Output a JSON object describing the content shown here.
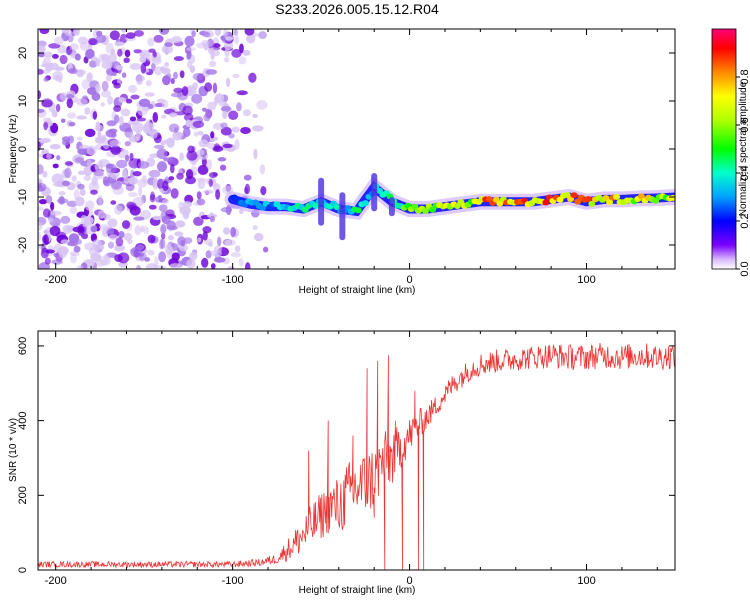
{
  "title": "S233.2026.005.15.12.R04",
  "colors": {
    "snr_line": "#ee3333",
    "scatter_dark": "#6a00d8",
    "scatter_mid": "#a070e8",
    "scatter_light": "#d8c4f4"
  },
  "colorbar": {
    "label": "Normalized spectral amplitude",
    "ticks": [
      "0.0",
      "0.2",
      "0.4",
      "0.6",
      "0.8"
    ],
    "tick_values": [
      0.0,
      0.2,
      0.4,
      0.6,
      0.8
    ],
    "range": [
      0,
      1
    ]
  },
  "chart_data": [
    {
      "type": "heatmap",
      "title": "S233.2026.005.15.12.R04",
      "xlabel": "Height of straight line (km)",
      "ylabel": "Frequency (Hz)",
      "xlim": [
        -210,
        150
      ],
      "ylim": [
        -25,
        25
      ],
      "xticks": [
        -200,
        -100,
        0,
        100
      ],
      "xtick_labels": [
        "-200",
        "-100",
        "0",
        "100"
      ],
      "yticks": [
        -20,
        -10,
        0,
        10,
        20
      ],
      "ytick_labels": [
        "-20",
        "-10",
        "0",
        "10",
        "20"
      ],
      "noise_region_x": [
        -210,
        -80
      ],
      "signal_trace": {
        "x": [
          -100,
          -90,
          -80,
          -70,
          -60,
          -50,
          -40,
          -30,
          -20,
          -10,
          0,
          10,
          20,
          30,
          40,
          50,
          60,
          70,
          80,
          90,
          100,
          110,
          120,
          130,
          140,
          150
        ],
        "freq": [
          -10.5,
          -11.5,
          -12,
          -12,
          -12.5,
          -11,
          -12.5,
          -13,
          -8,
          -11,
          -12.5,
          -12.5,
          -12,
          -11.5,
          -11,
          -11,
          -11,
          -11,
          -10.5,
          -10,
          -11,
          -10.5,
          -10.5,
          -10.3,
          -10.2,
          -10
        ],
        "amplitude": [
          0.25,
          0.3,
          0.3,
          0.35,
          0.4,
          0.35,
          0.35,
          0.4,
          0.35,
          0.45,
          0.55,
          0.6,
          0.7,
          0.6,
          0.75,
          0.8,
          0.8,
          0.75,
          0.8,
          0.85,
          0.8,
          0.75,
          0.7,
          0.7,
          0.65,
          0.6
        ]
      }
    },
    {
      "type": "line",
      "xlabel": "Height of straight line (km)",
      "ylabel": "SNR (10 * v/v)",
      "xlim": [
        -210,
        150
      ],
      "ylim": [
        0,
        640
      ],
      "xticks": [
        -200,
        -100,
        0,
        100
      ],
      "xtick_labels": [
        "-200",
        "-100",
        "0",
        "100"
      ],
      "yticks": [
        0,
        200,
        400,
        600
      ],
      "ytick_labels": [
        "0",
        "200",
        "400",
        "600"
      ],
      "series": [
        {
          "name": "SNR",
          "x": [
            -210,
            -150,
            -100,
            -85,
            -75,
            -65,
            -55,
            -45,
            -40,
            -35,
            -30,
            -25,
            -20,
            -15,
            -10,
            -5,
            0,
            5,
            10,
            15,
            20,
            25,
            30,
            35,
            40,
            50,
            60,
            70,
            80,
            90,
            100,
            110,
            120,
            130,
            140,
            150
          ],
          "y": [
            15,
            15,
            15,
            20,
            30,
            70,
            120,
            170,
            170,
            200,
            220,
            230,
            250,
            290,
            300,
            330,
            360,
            390,
            410,
            440,
            470,
            500,
            520,
            540,
            550,
            560,
            565,
            570,
            575,
            570,
            570,
            575,
            570,
            575,
            570,
            575
          ],
          "noise": [
            8,
            8,
            8,
            10,
            14,
            40,
            60,
            70,
            80,
            90,
            90,
            90,
            90,
            80,
            80,
            60,
            50,
            40,
            35,
            30,
            30,
            30,
            30,
            30,
            32,
            32,
            32,
            32,
            35,
            35,
            35,
            35,
            35,
            35,
            35,
            35
          ],
          "spikes": [
            {
              "x": -57,
              "y": 320
            },
            {
              "x": -46,
              "y": 400
            },
            {
              "x": -32,
              "y": 360
            },
            {
              "x": -24,
              "y": 540
            },
            {
              "x": -20,
              "y": 140
            },
            {
              "x": -18,
              "y": 560
            },
            {
              "x": -14,
              "y": 0
            },
            {
              "x": -12,
              "y": 575
            },
            {
              "x": -8,
              "y": 400
            },
            {
              "x": -4,
              "y": 0
            },
            {
              "x": 3,
              "y": 480
            },
            {
              "x": 5,
              "y": 0
            },
            {
              "x": 8,
              "y": 0
            }
          ]
        }
      ]
    }
  ]
}
